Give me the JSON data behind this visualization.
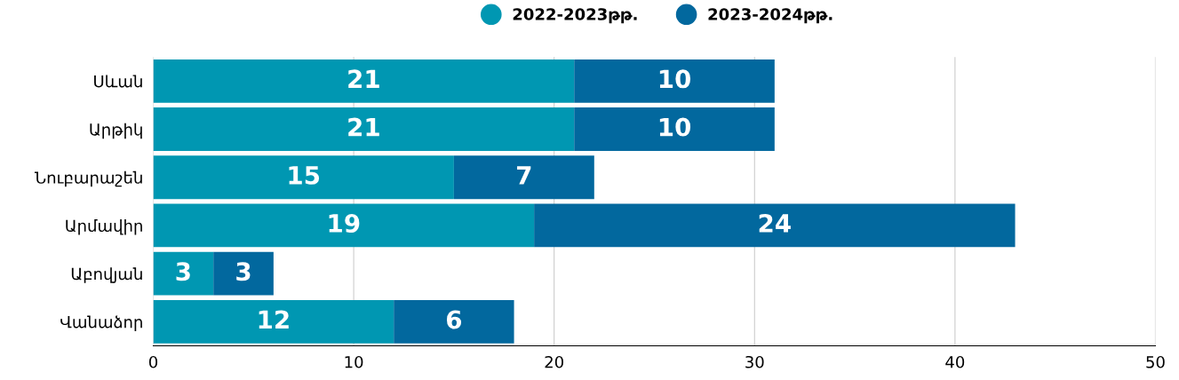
{
  "chart_data": {
    "type": "bar",
    "orientation": "horizontal",
    "stacked": true,
    "categories": [
      "Սևան",
      "Արթիկ",
      "Նուբարաշեն",
      "Արմավիր",
      "Աբովյան",
      "Վանաձոր"
    ],
    "series": [
      {
        "name": "2022-2023թթ.",
        "color": "#0097b2",
        "values": [
          21,
          21,
          15,
          19,
          3,
          12
        ]
      },
      {
        "name": "2023-2024թթ.",
        "color": "#02689e",
        "values": [
          10,
          10,
          7,
          24,
          3,
          6
        ]
      }
    ],
    "xlim": [
      0,
      50
    ],
    "xticks": [
      0,
      10,
      20,
      30,
      40,
      50
    ],
    "grid": "x",
    "legend": "top",
    "data_labels": true
  }
}
